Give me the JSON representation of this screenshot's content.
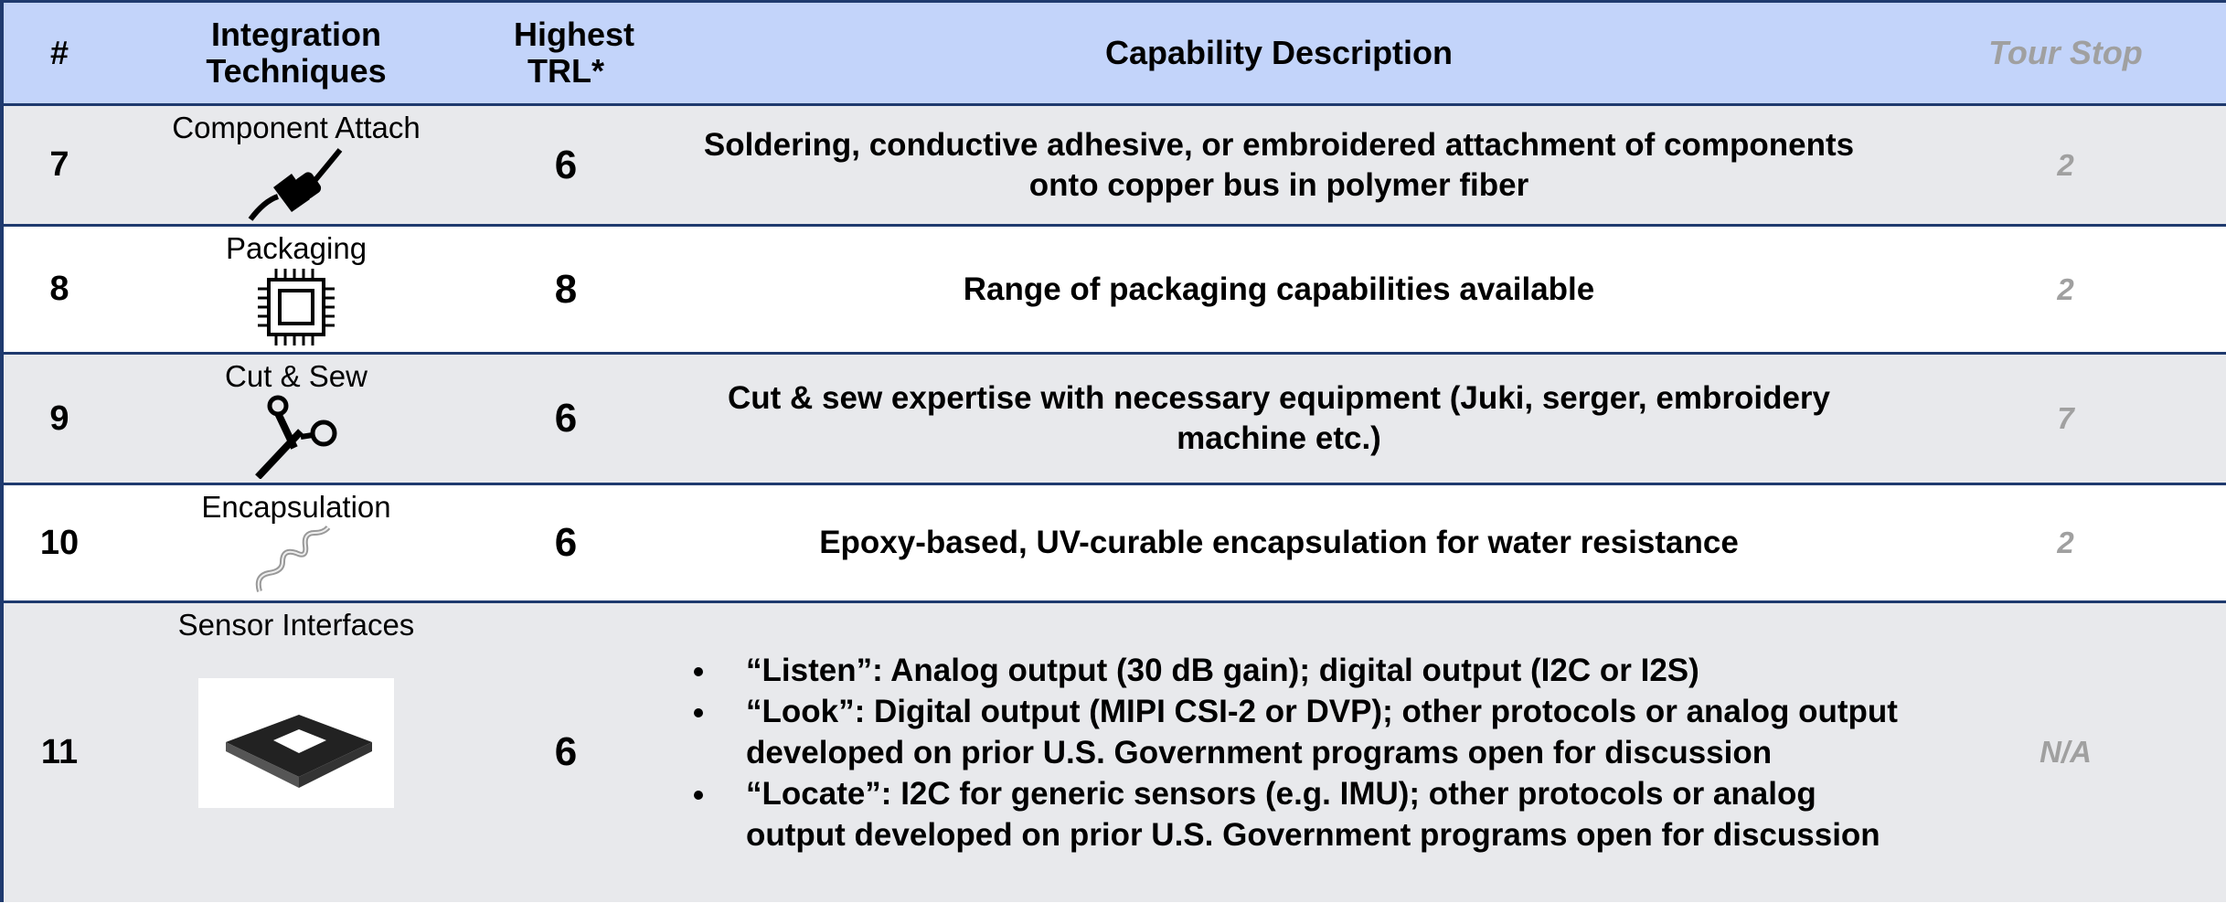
{
  "header": {
    "number": "#",
    "technique": "Integration Techniques",
    "trl": "Highest TRL*",
    "description": "Capability Description",
    "tour_stop": "Tour Stop"
  },
  "table": {
    "rows": [
      {
        "number": "7",
        "technique": "Component Attach",
        "trl": "6",
        "description": "Soldering, conductive adhesive, or embroidered attachment of components onto copper bus in polymer fiber",
        "tour_stop": "2"
      },
      {
        "number": "8",
        "technique": "Packaging",
        "trl": "8",
        "description": "Range of packaging capabilities available",
        "tour_stop": "2"
      },
      {
        "number": "9",
        "technique": "Cut & Sew",
        "trl": "6",
        "description": "Cut & sew expertise with necessary equipment (Juki, serger, embroidery machine etc.)",
        "tour_stop": "7"
      },
      {
        "number": "10",
        "technique": "Encapsulation",
        "trl": "6",
        "description": "Epoxy-based, UV-curable encapsulation for water resistance",
        "tour_stop": "2"
      },
      {
        "number": "11",
        "technique": "Sensor Interfaces",
        "trl": "6",
        "description": [
          "“Listen”: Analog output (30 dB gain); digital output (I2C or I2S)",
          "“Look”: Digital output (MIPI CSI-2 or DVP); other protocols or analog output developed on prior U.S. Government programs open for discussion",
          "“Locate”: I2C for generic sensors (e.g. IMU); other protocols or analog output developed on prior U.S. Government programs open for discussion"
        ],
        "tour_stop": "N/A"
      }
    ]
  }
}
